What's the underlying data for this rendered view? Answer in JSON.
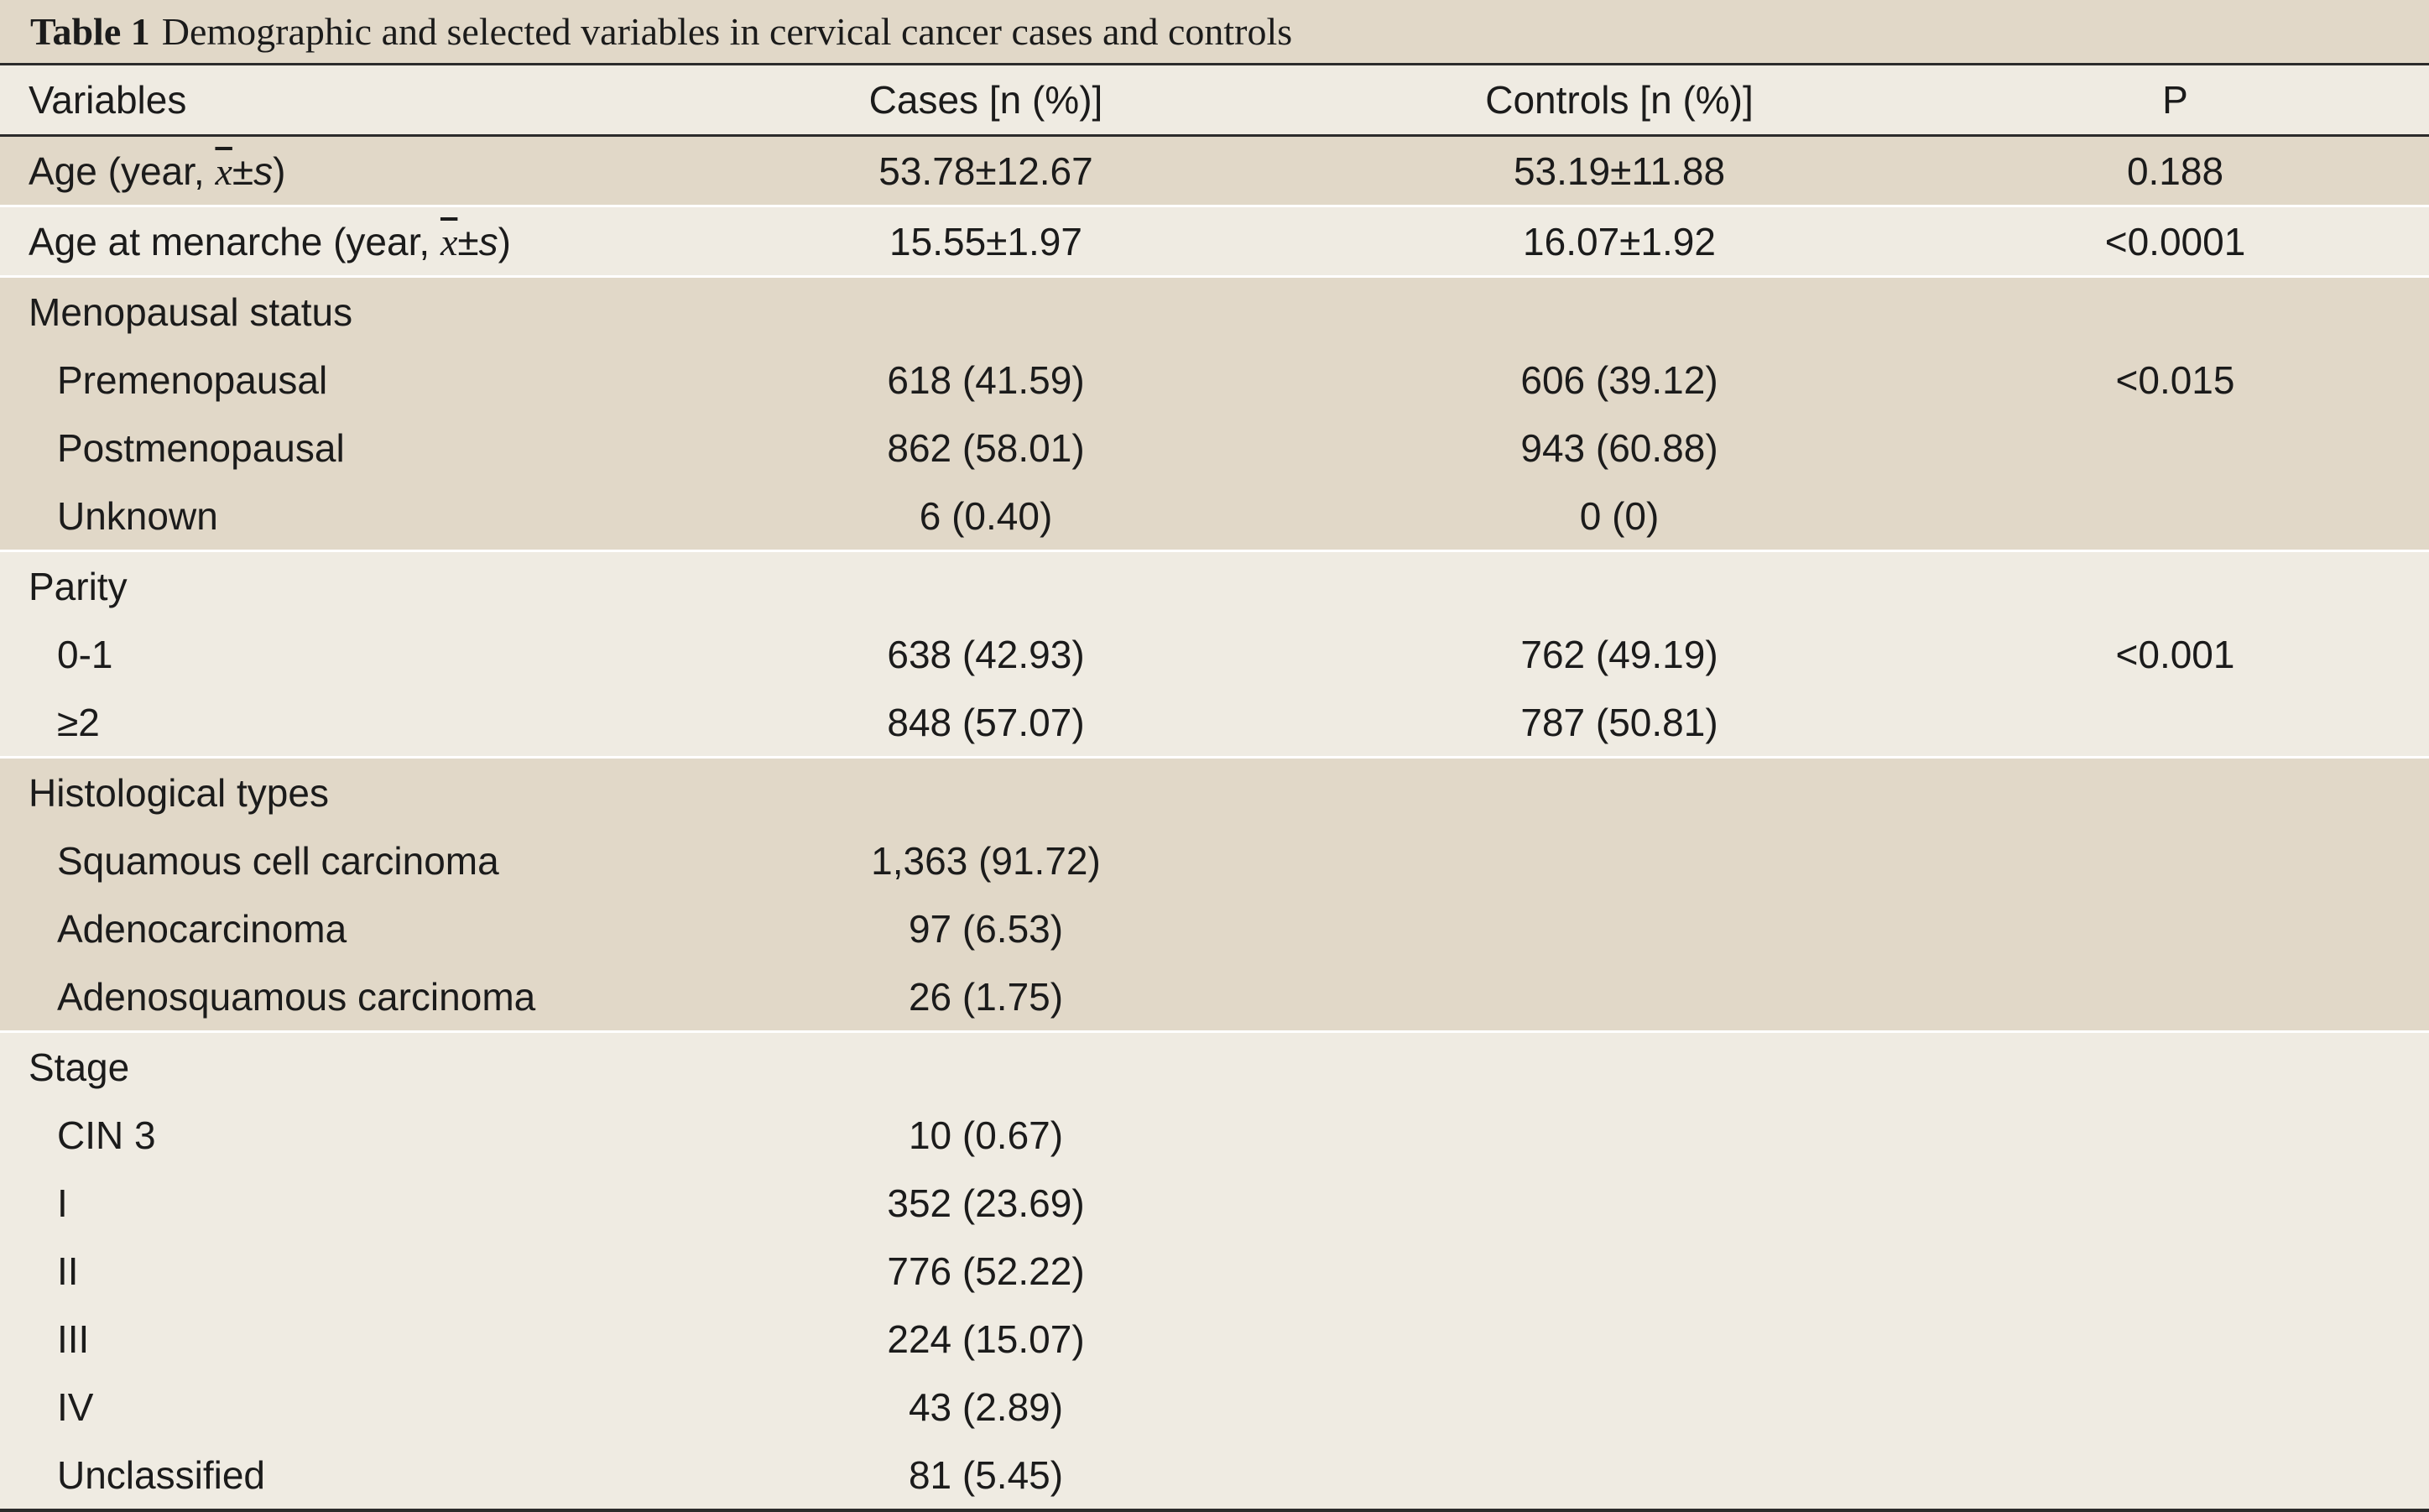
{
  "caption": {
    "label": "Table 1",
    "text": "Demographic and selected variables in cervical cancer cases and controls"
  },
  "headers": {
    "variables": "Variables",
    "cases": "Cases [n (%)]",
    "controls": "Controls [n (%)]",
    "p": "P"
  },
  "age": {
    "label_pre": "Age (year, ",
    "xbar": "x",
    "label_post_pm": "±",
    "label_post_s": "s",
    "label_close": ")",
    "cases": "53.78±12.67",
    "controls": "53.19±11.88",
    "p": "0.188"
  },
  "menarche": {
    "label_pre": "Age at menarche (year, ",
    "xbar": "x",
    "label_post_pm": "±",
    "label_post_s": "s",
    "label_close": ")",
    "cases": "15.55±1.97",
    "controls": "16.07±1.92",
    "p": "<0.0001"
  },
  "menopausal": {
    "title": "Menopausal status",
    "rows": [
      {
        "label": "Premenopausal",
        "cases": "618 (41.59)",
        "controls": "606 (39.12)",
        "p": "<0.015"
      },
      {
        "label": "Postmenopausal",
        "cases": "862 (58.01)",
        "controls": "943 (60.88)",
        "p": ""
      },
      {
        "label": "Unknown",
        "cases": "6 (0.40)",
        "controls": "0 (0)",
        "p": ""
      }
    ]
  },
  "parity": {
    "title": "Parity",
    "rows": [
      {
        "label": "0-1",
        "cases": "638 (42.93)",
        "controls": "762 (49.19)",
        "p": "<0.001"
      },
      {
        "label": "≥2",
        "cases": "848 (57.07)",
        "controls": "787 (50.81)",
        "p": ""
      }
    ]
  },
  "histology": {
    "title": "Histological types",
    "rows": [
      {
        "label": "Squamous cell carcinoma",
        "cases": "1,363 (91.72)",
        "controls": "",
        "p": ""
      },
      {
        "label": "Adenocarcinoma",
        "cases": "97 (6.53)",
        "controls": "",
        "p": ""
      },
      {
        "label": "Adenosquamous carcinoma",
        "cases": "26 (1.75)",
        "controls": "",
        "p": ""
      }
    ]
  },
  "stage": {
    "title": "Stage",
    "rows": [
      {
        "label": "CIN 3",
        "cases": "10 (0.67)",
        "controls": "",
        "p": ""
      },
      {
        "label": "I",
        "cases": "352 (23.69)",
        "controls": "",
        "p": ""
      },
      {
        "label": "II",
        "cases": "776 (52.22)",
        "controls": "",
        "p": ""
      },
      {
        "label": "III",
        "cases": "224 (15.07)",
        "controls": "",
        "p": ""
      },
      {
        "label": "IV",
        "cases": "43 (2.89)",
        "controls": "",
        "p": ""
      },
      {
        "label": "Unclassified",
        "cases": "81 (5.45)",
        "controls": "",
        "p": ""
      }
    ]
  },
  "colors": {
    "shade": "#e1d8c8",
    "plain": "#efebe2",
    "rule": "#2b2b2b"
  }
}
